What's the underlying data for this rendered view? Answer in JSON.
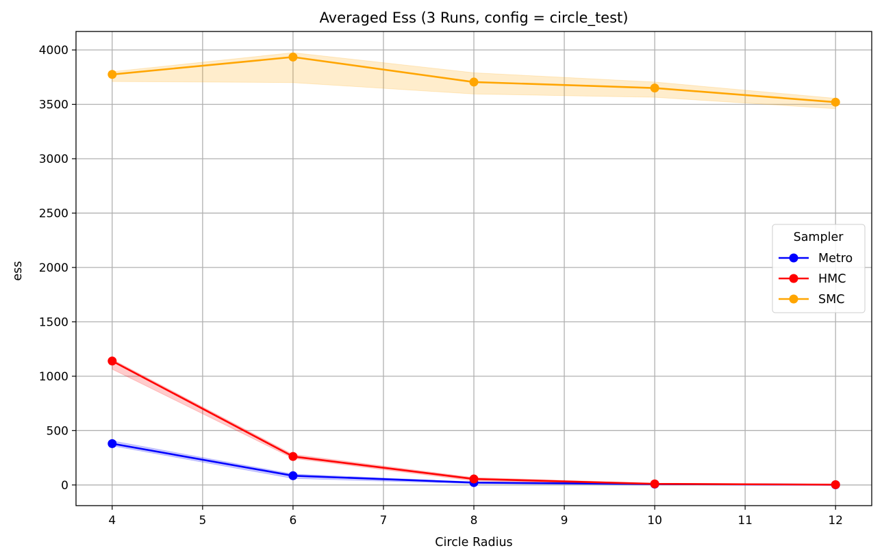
{
  "chart_data": {
    "type": "line",
    "title": "Averaged Ess (3 Runs, config = circle_test)",
    "xlabel": "Circle Radius",
    "ylabel": "ess",
    "xlim": [
      3.6,
      12.4
    ],
    "ylim": [
      -190,
      4170
    ],
    "xticks": [
      4,
      5,
      6,
      7,
      8,
      9,
      10,
      11,
      12
    ],
    "yticks": [
      0,
      500,
      1000,
      1500,
      2000,
      2500,
      3000,
      3500,
      4000
    ],
    "grid": true,
    "legend": {
      "title": "Sampler",
      "placement": "center-right"
    },
    "x": [
      4,
      6,
      8,
      10,
      12
    ],
    "series": [
      {
        "name": "Metro",
        "color": "#0000ff",
        "values": [
          380,
          85,
          22,
          8,
          2
        ],
        "lower": [
          360,
          60,
          12,
          4,
          1
        ],
        "upper": [
          405,
          100,
          28,
          12,
          4
        ]
      },
      {
        "name": "HMC",
        "color": "#ff0000",
        "values": [
          1140,
          262,
          55,
          10,
          3
        ],
        "lower": [
          1065,
          245,
          38,
          6,
          1
        ],
        "upper": [
          1155,
          280,
          68,
          16,
          6
        ]
      },
      {
        "name": "SMC",
        "color": "#ffa500",
        "values": [
          3775,
          3935,
          3705,
          3650,
          3520
        ],
        "lower": [
          3710,
          3700,
          3595,
          3565,
          3460
        ],
        "upper": [
          3800,
          3975,
          3790,
          3705,
          3555
        ]
      }
    ]
  }
}
